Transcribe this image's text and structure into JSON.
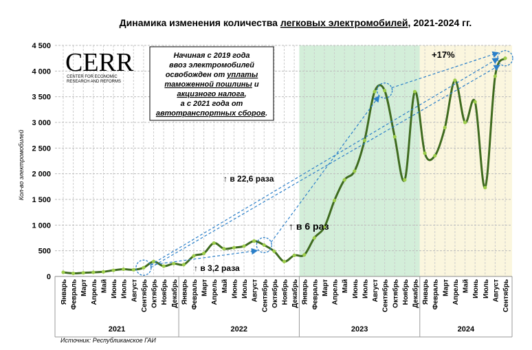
{
  "chart_data": {
    "type": "line",
    "title": [
      "Динамика изменения количества ",
      "легковых электромобилей",
      ", 2021-2024 гг."
    ],
    "categories": [
      "Январь",
      "Февраль",
      "Март",
      "Апрель",
      "Май",
      "Июнь",
      "Июль",
      "Август",
      "Сентябрь",
      "Октябрь",
      "Ноябрь",
      "Декабрь",
      "Январь",
      "Февраль",
      "Март",
      "Апрель",
      "Май",
      "Июнь",
      "Июль",
      "Август",
      "Сентябрь",
      "Октябрь",
      "Ноябрь",
      "Декабрь",
      "Январь",
      "Февраль",
      "Март",
      "Апрель",
      "Май",
      "Июнь",
      "Июль",
      "Август",
      "Сентябрь",
      "Октябрь",
      "Ноябрь",
      "Декабрь",
      "Январь",
      "Февраль",
      "Март",
      "Апрель",
      "Май",
      "Июнь",
      "Июль",
      "Август",
      "Сентябрь"
    ],
    "years": [
      "2021",
      "2022",
      "2023",
      "2024"
    ],
    "series": [
      {
        "name": "Кол-во электромобилей",
        "color": "#3f6b1f",
        "marker_color": "#9ccc4a",
        "values": [
          80,
          60,
          70,
          80,
          90,
          120,
          140,
          130,
          170,
          290,
          200,
          250,
          230,
          400,
          450,
          650,
          540,
          560,
          590,
          690,
          610,
          490,
          290,
          410,
          420,
          750,
          960,
          1480,
          1880,
          2050,
          2650,
          3600,
          3620,
          2720,
          1880,
          3600,
          2400,
          2350,
          2900,
          3820,
          3000,
          3400,
          1730,
          3900,
          4250
        ]
      }
    ],
    "ylabel": "Кол-во электромобилей",
    "ylim": [
      0,
      4500
    ],
    "yticks": [
      0,
      500,
      {
        "value": 1000,
        "label": "1 000"
      },
      {
        "value": 1500,
        "label": "1 500"
      },
      {
        "value": 2000,
        "label": "2 000"
      },
      {
        "value": 2500,
        "label": "2 500"
      },
      {
        "value": 3000,
        "label": "3 000"
      },
      {
        "value": 3500,
        "label": "3 500"
      },
      {
        "value": 4000,
        "label": "4 000"
      },
      {
        "value": 4500,
        "label": "4 500"
      }
    ],
    "grid": true,
    "shade_colors": [
      "#d3eed9",
      "#fbf6de"
    ],
    "logo": "CERR",
    "logo_sub": [
      "CENTER FOR ECONOMIC",
      "RESEARCH AND REFORMS"
    ],
    "note": [
      [
        {
          "text": "Начиная с 2019 года"
        }
      ],
      [
        {
          "text": "ввоз электромобилей"
        }
      ],
      [
        {
          "text": "освобожден от "
        },
        {
          "text": "уплаты",
          "underline": true
        }
      ],
      [
        {
          "text": "таможенной пошлины",
          "underline": true
        },
        {
          "text": " и"
        }
      ],
      [
        {
          "text": "акцизного налога",
          "underline": true
        },
        {
          "text": ","
        }
      ],
      [
        {
          "text": "а с 2021 года от"
        }
      ],
      [
        {
          "text": "автотранспортных сборов",
          "underline": true
        },
        {
          "text": "."
        }
      ]
    ],
    "annotations": [
      "↑ в 22,6 раза",
      "↑ в 3,2 раза",
      "↑ в 6 раз",
      "+17%"
    ],
    "source": "Источник: Республиканское ГАИ"
  }
}
